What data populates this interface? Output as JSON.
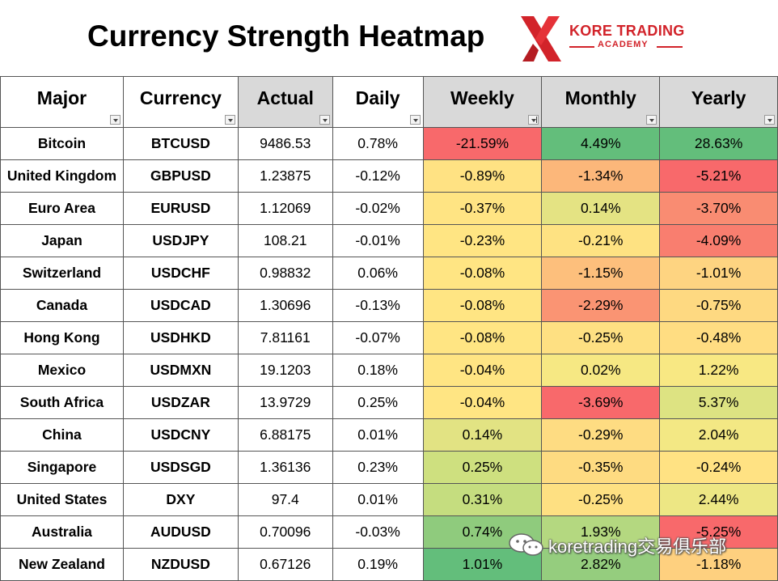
{
  "title": "Currency Strength Heatmap",
  "logo": {
    "line1": "KORE TRADING",
    "line2": "ACADEMY",
    "brand_color": "#d2232a"
  },
  "columns": [
    "Major",
    "Currency",
    "Actual",
    "Daily",
    "Weekly",
    "Monthly",
    "Yearly"
  ],
  "rows": [
    {
      "major": "Bitcoin",
      "currency": "BTCUSD",
      "actual": "9486.53",
      "daily": "0.78%",
      "weekly": "-21.59%",
      "monthly": "4.49%",
      "yearly": "28.63%",
      "weekly_bg": "#f8696b",
      "monthly_bg": "#63be7b",
      "yearly_bg": "#63be7b"
    },
    {
      "major": "United Kingdom",
      "currency": "GBPUSD",
      "actual": "1.23875",
      "daily": "-0.12%",
      "weekly": "-0.89%",
      "monthly": "-1.34%",
      "yearly": "-5.21%",
      "weekly_bg": "#ffe283",
      "monthly_bg": "#fcb77a",
      "yearly_bg": "#f8696b"
    },
    {
      "major": "Euro Area",
      "currency": "EURUSD",
      "actual": "1.12069",
      "daily": "-0.02%",
      "weekly": "-0.37%",
      "monthly": "0.14%",
      "yearly": "-3.70%",
      "weekly_bg": "#ffe483",
      "monthly_bg": "#e4e383",
      "yearly_bg": "#f98c72"
    },
    {
      "major": "Japan",
      "currency": "USDJPY",
      "actual": "108.21",
      "daily": "-0.01%",
      "weekly": "-0.23%",
      "monthly": "-0.21%",
      "yearly": "-4.09%",
      "weekly_bg": "#ffe583",
      "monthly_bg": "#fee282",
      "yearly_bg": "#f97e6f"
    },
    {
      "major": "Switzerland",
      "currency": "USDCHF",
      "actual": "0.98832",
      "daily": "0.06%",
      "weekly": "-0.08%",
      "monthly": "-1.15%",
      "yearly": "-1.01%",
      "weekly_bg": "#ffe583",
      "monthly_bg": "#fdbf7c",
      "yearly_bg": "#fed481"
    },
    {
      "major": "Canada",
      "currency": "USDCAD",
      "actual": "1.30696",
      "daily": "-0.13%",
      "weekly": "-0.08%",
      "monthly": "-2.29%",
      "yearly": "-0.75%",
      "weekly_bg": "#ffe583",
      "monthly_bg": "#fa9473",
      "yearly_bg": "#fed981"
    },
    {
      "major": "Hong Kong",
      "currency": "USDHKD",
      "actual": "7.81161",
      "daily": "-0.07%",
      "weekly": "-0.08%",
      "monthly": "-0.25%",
      "yearly": "-0.48%",
      "weekly_bg": "#ffe583",
      "monthly_bg": "#fee082",
      "yearly_bg": "#ffdd82"
    },
    {
      "major": "Mexico",
      "currency": "USDMXN",
      "actual": "19.1203",
      "daily": "0.18%",
      "weekly": "-0.04%",
      "monthly": "0.02%",
      "yearly": "1.22%",
      "weekly_bg": "#ffe583",
      "monthly_bg": "#f6e883",
      "yearly_bg": "#f8e883"
    },
    {
      "major": "South Africa",
      "currency": "USDZAR",
      "actual": "13.9729",
      "daily": "0.25%",
      "weekly": "-0.04%",
      "monthly": "-3.69%",
      "yearly": "5.37%",
      "weekly_bg": "#ffe583",
      "monthly_bg": "#f8696b",
      "yearly_bg": "#dde382"
    },
    {
      "major": "China",
      "currency": "USDCNY",
      "actual": "6.88175",
      "daily": "0.01%",
      "weekly": "0.14%",
      "monthly": "-0.29%",
      "yearly": "2.04%",
      "weekly_bg": "#e2e383",
      "monthly_bg": "#fedc82",
      "yearly_bg": "#f3e884"
    },
    {
      "major": "Singapore",
      "currency": "USDSGD",
      "actual": "1.36136",
      "daily": "0.23%",
      "weekly": "0.25%",
      "monthly": "-0.35%",
      "yearly": "-0.24%",
      "weekly_bg": "#cee07f",
      "monthly_bg": "#fedb81",
      "yearly_bg": "#ffe283"
    },
    {
      "major": "United States",
      "currency": "DXY",
      "actual": "97.4",
      "daily": "0.01%",
      "weekly": "0.31%",
      "monthly": "-0.25%",
      "yearly": "2.44%",
      "weekly_bg": "#c5dd7f",
      "monthly_bg": "#fee082",
      "yearly_bg": "#ede784"
    },
    {
      "major": "Australia",
      "currency": "AUDUSD",
      "actual": "0.70096",
      "daily": "-0.03%",
      "weekly": "0.74%",
      "monthly": "1.93%",
      "yearly": "-5.25%",
      "weekly_bg": "#8fcb7d",
      "monthly_bg": "#b4d880",
      "yearly_bg": "#f8696b"
    },
    {
      "major": "New Zealand",
      "currency": "NZDUSD",
      "actual": "0.67126",
      "daily": "0.19%",
      "weekly": "1.01%",
      "monthly": "2.82%",
      "yearly": "-1.18%",
      "weekly_bg": "#63be7b",
      "monthly_bg": "#95cd7e",
      "yearly_bg": "#fed07f"
    }
  ],
  "watermark": "koretrading交易俱乐部"
}
